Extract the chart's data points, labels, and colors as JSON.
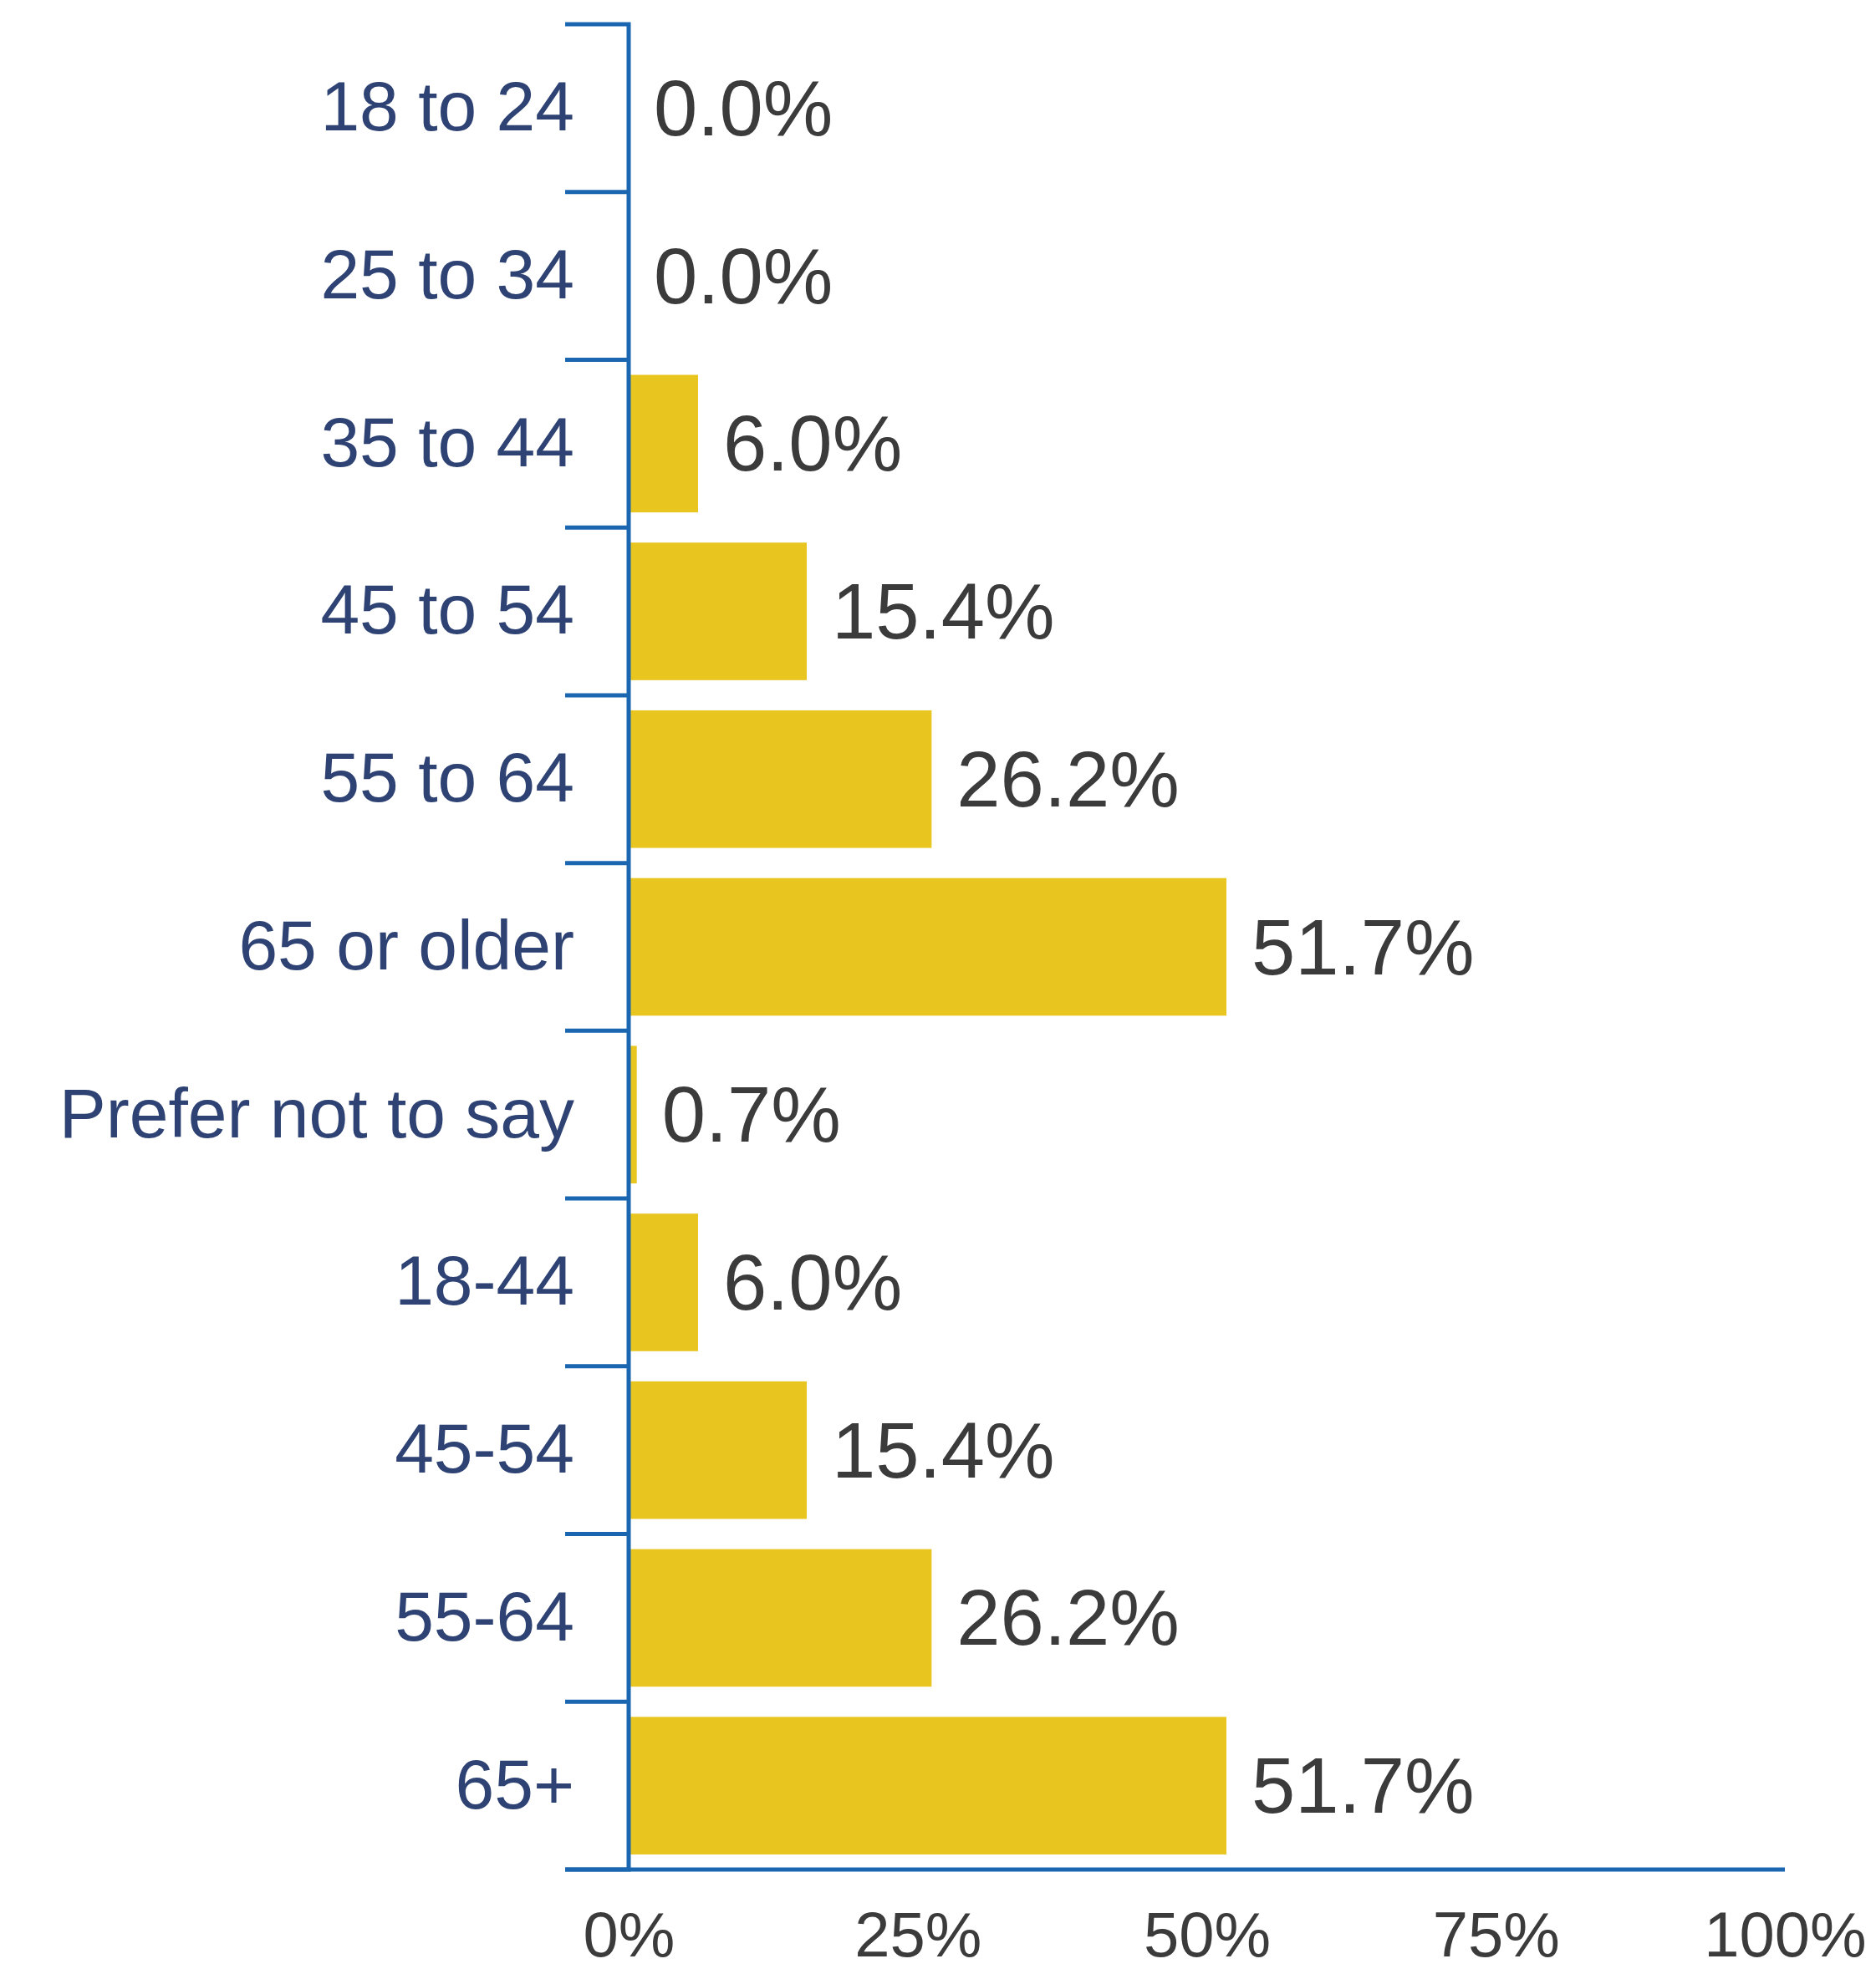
{
  "chart_data": {
    "type": "bar",
    "orientation": "horizontal",
    "categories": [
      "18 to 24",
      "25 to 34",
      "35 to 44",
      "45 to 54",
      "55 to 64",
      "65 or older",
      "Prefer not to say",
      "18-44",
      "45-54",
      "55-64",
      "65+"
    ],
    "values": [
      0.0,
      0.0,
      6.0,
      15.4,
      26.2,
      51.7,
      0.7,
      6.0,
      15.4,
      26.2,
      51.7
    ],
    "value_labels": [
      "0.0%",
      "0.0%",
      "6.0%",
      "15.4%",
      "26.2%",
      "51.7%",
      "0.7%",
      "6.0%",
      "15.4%",
      "26.2%",
      "51.7%"
    ],
    "color": "#e8c51f",
    "xlim": [
      0,
      100
    ],
    "xticks": [
      {
        "value": 0,
        "label": "0%"
      },
      {
        "value": 25,
        "label": "25%"
      },
      {
        "value": 50,
        "label": "50%"
      },
      {
        "value": 75,
        "label": "75%"
      },
      {
        "value": 100,
        "label": "100%"
      }
    ]
  }
}
